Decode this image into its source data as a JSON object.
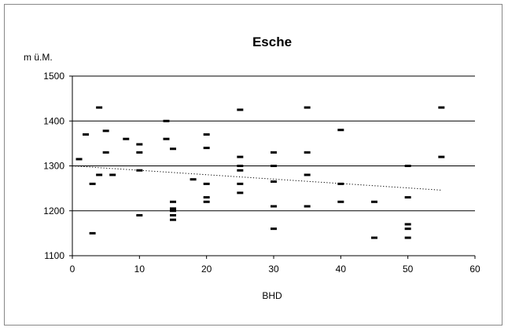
{
  "chart_data": {
    "type": "scatter",
    "title": "Esche",
    "xlabel": "BHD",
    "ylabel": "m ü.M.",
    "xlim": [
      0,
      60
    ],
    "ylim": [
      1100,
      1500
    ],
    "x_ticks": [
      0,
      10,
      20,
      30,
      40,
      50,
      60
    ],
    "y_ticks": [
      1100,
      1200,
      1300,
      1400,
      1500
    ],
    "grid": "horizontal",
    "legend": "none",
    "marker": "dash",
    "marker_color": "#000000",
    "trendline": {
      "style": "dotted",
      "x": [
        0,
        55
      ],
      "y": [
        1300,
        1246
      ]
    },
    "series": [
      {
        "points": [
          [
            1,
            1315
          ],
          [
            2,
            1370
          ],
          [
            3,
            1260
          ],
          [
            3,
            1150
          ],
          [
            4,
            1430
          ],
          [
            4,
            1280
          ],
          [
            5,
            1378
          ],
          [
            5,
            1330
          ],
          [
            6,
            1280
          ],
          [
            8,
            1360
          ],
          [
            10,
            1348
          ],
          [
            10,
            1330
          ],
          [
            10,
            1290
          ],
          [
            10,
            1190
          ],
          [
            14,
            1400
          ],
          [
            14,
            1360
          ],
          [
            15,
            1338
          ],
          [
            15,
            1220
          ],
          [
            15,
            1205
          ],
          [
            15,
            1200
          ],
          [
            15,
            1190
          ],
          [
            15,
            1180
          ],
          [
            18,
            1270
          ],
          [
            20,
            1370
          ],
          [
            20,
            1340
          ],
          [
            20,
            1260
          ],
          [
            20,
            1230
          ],
          [
            20,
            1220
          ],
          [
            25,
            1425
          ],
          [
            25,
            1320
          ],
          [
            25,
            1300
          ],
          [
            25,
            1290
          ],
          [
            25,
            1260
          ],
          [
            25,
            1240
          ],
          [
            30,
            1330
          ],
          [
            30,
            1300
          ],
          [
            30,
            1265
          ],
          [
            30,
            1210
          ],
          [
            30,
            1160
          ],
          [
            35,
            1430
          ],
          [
            35,
            1330
          ],
          [
            35,
            1280
          ],
          [
            35,
            1210
          ],
          [
            40,
            1380
          ],
          [
            40,
            1260
          ],
          [
            40,
            1220
          ],
          [
            45,
            1220
          ],
          [
            45,
            1140
          ],
          [
            50,
            1300
          ],
          [
            50,
            1230
          ],
          [
            50,
            1170
          ],
          [
            50,
            1160
          ],
          [
            50,
            1140
          ],
          [
            55,
            1430
          ],
          [
            55,
            1320
          ]
        ]
      }
    ]
  }
}
